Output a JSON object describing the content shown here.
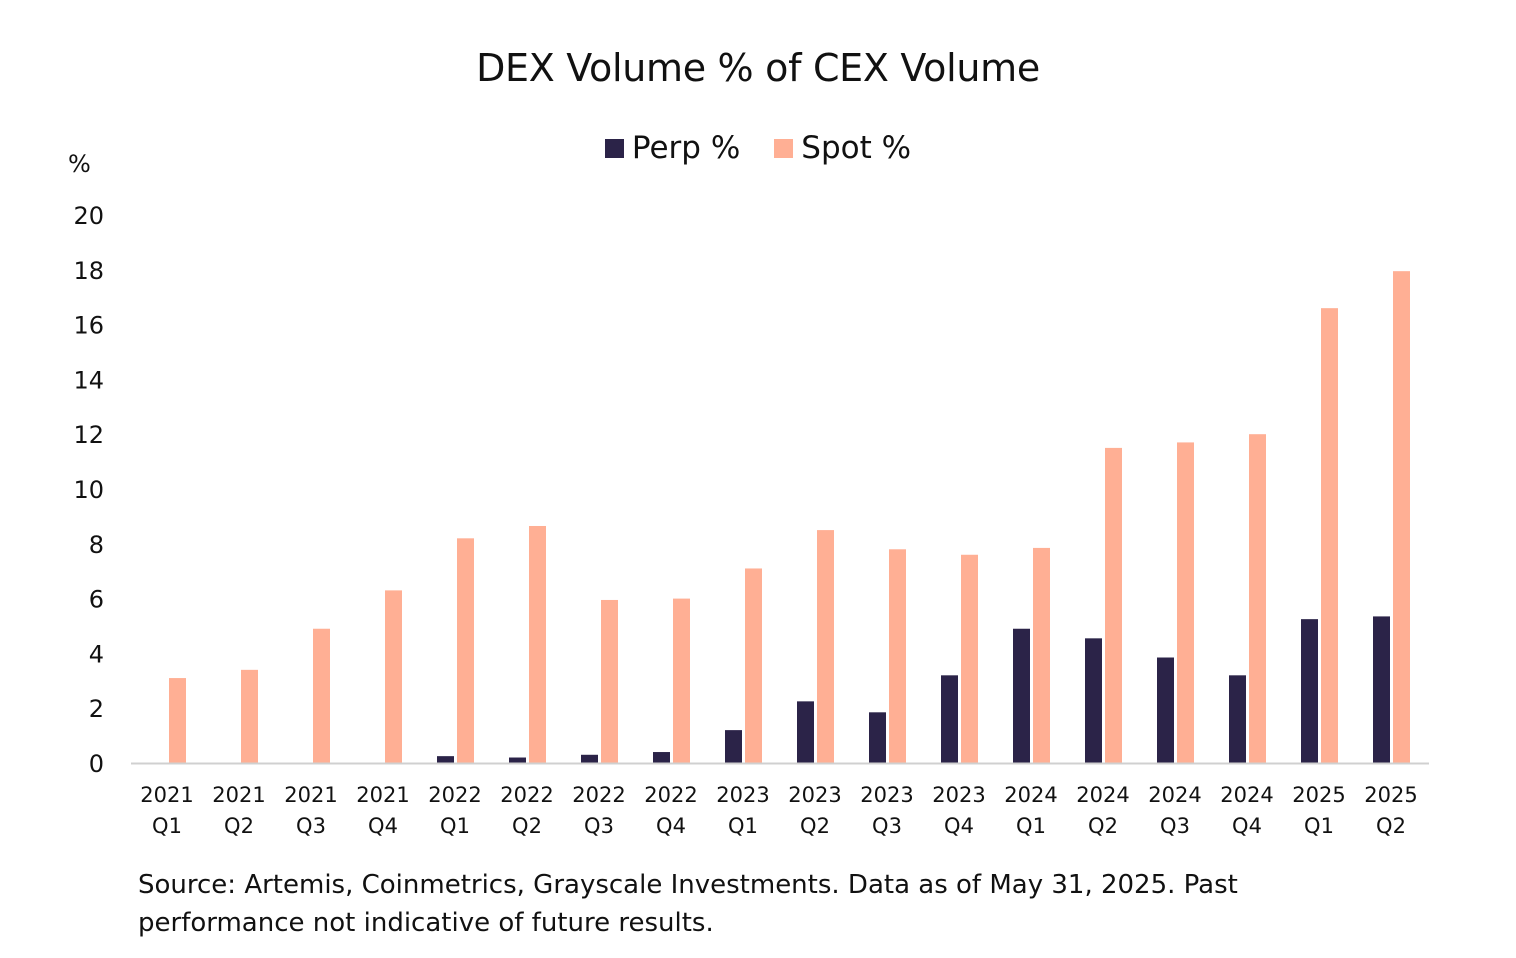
{
  "chart_data": {
    "type": "bar",
    "title": "DEX Volume % of CEX Volume",
    "xlabel": "",
    "ylabel": "%",
    "ylim": [
      0,
      20
    ],
    "yticks": [
      0,
      2,
      4,
      6,
      8,
      10,
      12,
      14,
      16,
      18,
      20
    ],
    "grid": false,
    "legend_position": "top-center",
    "categories": [
      [
        "2021",
        "Q1"
      ],
      [
        "2021",
        "Q2"
      ],
      [
        "2021",
        "Q3"
      ],
      [
        "2021",
        "Q4"
      ],
      [
        "2022",
        "Q1"
      ],
      [
        "2022",
        "Q2"
      ],
      [
        "2022",
        "Q3"
      ],
      [
        "2022",
        "Q4"
      ],
      [
        "2023",
        "Q1"
      ],
      [
        "2023",
        "Q2"
      ],
      [
        "2023",
        "Q3"
      ],
      [
        "2023",
        "Q4"
      ],
      [
        "2024",
        "Q1"
      ],
      [
        "2024",
        "Q2"
      ],
      [
        "2024",
        "Q3"
      ],
      [
        "2024",
        "Q4"
      ],
      [
        "2025",
        "Q1"
      ],
      [
        "2025",
        "Q2"
      ]
    ],
    "series": [
      {
        "name": "Perp %",
        "color": "#2b2348",
        "values": [
          0,
          0,
          0,
          0,
          0.25,
          0.2,
          0.3,
          0.4,
          1.2,
          2.25,
          1.85,
          3.2,
          4.9,
          4.55,
          3.85,
          3.2,
          5.25,
          5.35
        ]
      },
      {
        "name": "Spot %",
        "color": "#ffaf94",
        "values": [
          3.1,
          3.4,
          4.9,
          6.3,
          8.2,
          8.65,
          5.95,
          6.0,
          7.1,
          8.5,
          7.8,
          7.6,
          7.85,
          11.5,
          11.7,
          12.0,
          16.6,
          17.95
        ]
      }
    ]
  },
  "legend": [
    {
      "label": "Perp %",
      "color": "#2b2348"
    },
    {
      "label": "Spot %",
      "color": "#ffaf94"
    }
  ],
  "footer": {
    "source": "Source: Artemis, Coinmetrics, Grayscale Investments. Data as of May 31, 2025. Past performance not indicative of future results."
  }
}
